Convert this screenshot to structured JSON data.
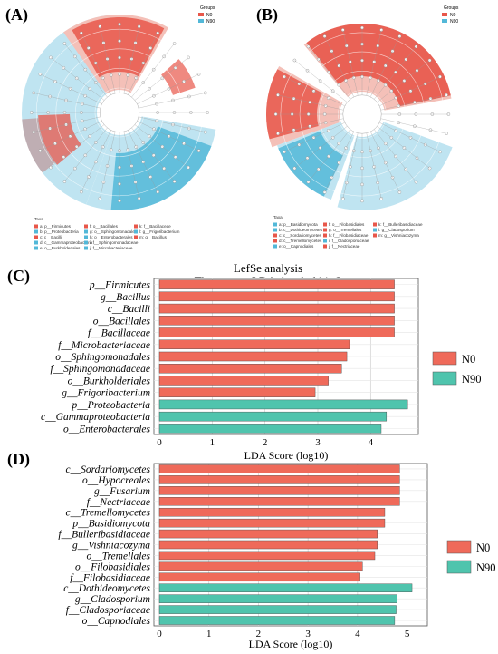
{
  "colors": {
    "N0": "#ef6a5a",
    "N90": "#4fc4ad",
    "clad_red": "#e8574a",
    "clad_blue": "#52b8d8",
    "grid": "#cccccc",
    "panel_bg": "#ffffff"
  },
  "panelA": {
    "label": "(A)",
    "groups_title": "Groups",
    "groups": [
      "N0",
      "N90"
    ],
    "taxa_title": "Taxa",
    "taxa": [
      "a: p__Firmicutes",
      "b: p__Proteobacteria",
      "c: c__Bacilli",
      "d: c__Gammaproteobacteria",
      "e: o__Burkholderiales",
      "f: o__Bacillales",
      "g: o__Sphingomonadales",
      "h: o__Enterobacterales",
      "i: f__Sphingomonadaceae",
      "j: f__Microbacteriaceae",
      "k: f__Bacillaceae",
      "l: g__Frigoribacterium",
      "m: g__Bacillus"
    ]
  },
  "panelB": {
    "label": "(B)",
    "groups_title": "Groups",
    "groups": [
      "N0",
      "N90"
    ],
    "taxa_title": "Taxa",
    "taxa": [
      "a: p__Basidiomycota",
      "b: c__Dothideomycetes",
      "c: c__Sordariomycetes",
      "d: c__Tremellomycetes",
      "e: o__Capnodiales",
      "f: o__Filobasidiales",
      "g: o__Tremellales",
      "h: f__Filobasidiaceae",
      "i: f__Cladosporiaceae",
      "j: f__Nectriaceae",
      "k: f__Bulleribasidiaceae",
      "l: g__Cladosporium",
      "m: g__Vishniacozyma"
    ]
  },
  "chart_data": [
    {
      "type": "bar",
      "orientation": "horizontal",
      "panel": "(C)",
      "title": "LefSe analysis",
      "subtitle": "The current LDA threshold is 2",
      "xlabel": "LDA Score (log10)",
      "xlim": [
        0,
        4.8
      ],
      "xticks": [
        0,
        1,
        2,
        3,
        4
      ],
      "grid": true,
      "legend_position": "right",
      "series": [
        {
          "name": "N0"
        },
        {
          "name": "N90"
        }
      ],
      "categories": [
        "p__Firmicutes",
        "g__Bacillus",
        "c__Bacilli",
        "o__Bacillales",
        "f__Bacillaceae",
        "f__Microbacteriaceae",
        "o__Sphingomonadales",
        "f__Sphingomonadaceae",
        "o__Burkholderiales",
        "g__Frigoribacterium",
        "p__Proteobacteria",
        "c__Gammaproteobacteria",
        "o__Enterobacterales"
      ],
      "values": [
        4.45,
        4.45,
        4.45,
        4.45,
        4.45,
        3.6,
        3.55,
        3.45,
        3.2,
        2.95,
        4.7,
        4.3,
        4.2
      ],
      "groups": [
        "N0",
        "N0",
        "N0",
        "N0",
        "N0",
        "N0",
        "N0",
        "N0",
        "N0",
        "N0",
        "N90",
        "N90",
        "N90"
      ]
    },
    {
      "type": "bar",
      "orientation": "horizontal",
      "panel": "(D)",
      "xlabel": "LDA Score (log10)",
      "xlim": [
        0,
        5.3
      ],
      "xticks": [
        0,
        1,
        2,
        3,
        4,
        5
      ],
      "grid": true,
      "legend_position": "right",
      "series": [
        {
          "name": "N0"
        },
        {
          "name": "N90"
        }
      ],
      "categories": [
        "c__Sordariomycetes",
        "o__Hypocreales",
        "g__Fusarium",
        "f__Nectriaceae",
        "c__Tremellomycetes",
        "p__Basidiomycota",
        "f__Bulleribasidiaceae",
        "g__Vishniacozyma",
        "o__Tremellales",
        "o__Filobasidiales",
        "f__Filobasidiaceae",
        "c__Dothideomycetes",
        "g__Cladosporium",
        "f__Cladosporiaceae",
        "o__Capnodiales"
      ],
      "values": [
        4.85,
        4.85,
        4.85,
        4.85,
        4.55,
        4.55,
        4.4,
        4.4,
        4.35,
        4.1,
        4.05,
        5.1,
        4.8,
        4.78,
        4.75
      ],
      "groups": [
        "N0",
        "N0",
        "N0",
        "N0",
        "N0",
        "N0",
        "N0",
        "N0",
        "N0",
        "N0",
        "N0",
        "N90",
        "N90",
        "N90",
        "N90"
      ]
    }
  ]
}
